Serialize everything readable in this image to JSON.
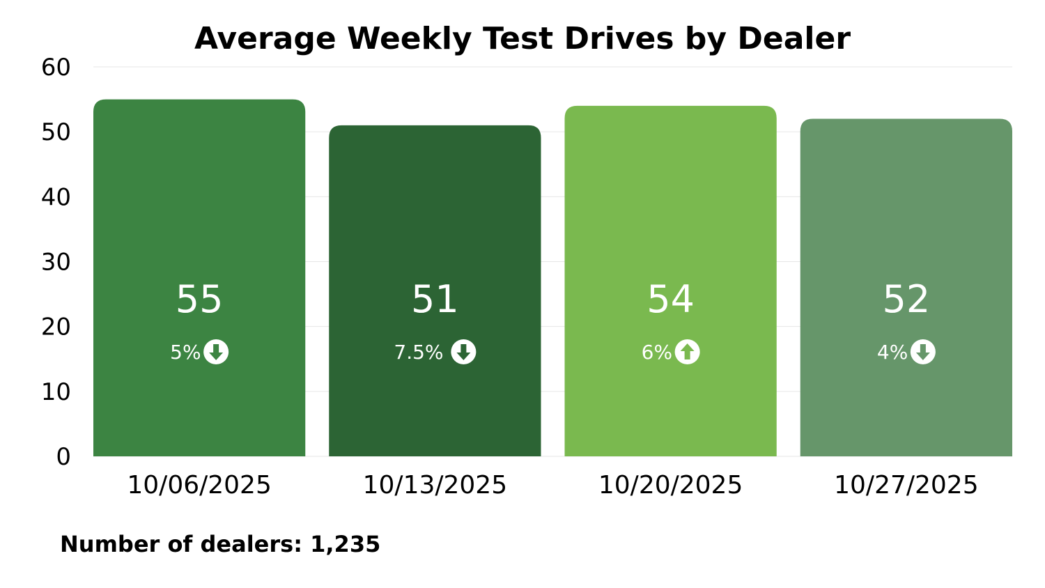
{
  "chart_data": {
    "type": "bar",
    "title": "Average Weekly Test Drives by Dealer",
    "xlabel": "",
    "ylabel": "",
    "ylim": [
      0,
      60
    ],
    "yticks": [
      0,
      10,
      20,
      30,
      40,
      50,
      60
    ],
    "categories": [
      "10/06/2025",
      "10/13/2025",
      "10/20/2025",
      "10/27/2025"
    ],
    "values": [
      55,
      51,
      54,
      52
    ],
    "value_labels": [
      "55",
      "51",
      "54",
      "52"
    ],
    "changes": [
      {
        "label": "5%",
        "direction": "down",
        "icon": "arrow-down-circle-icon"
      },
      {
        "label": "7.5%",
        "direction": "down",
        "icon": "arrow-down-circle-icon"
      },
      {
        "label": "6%",
        "direction": "up",
        "icon": "arrow-up-circle-icon"
      },
      {
        "label": "4%",
        "direction": "down",
        "icon": "arrow-down-circle-icon"
      }
    ],
    "colors": [
      "#3c8442",
      "#2c6434",
      "#7ab94f",
      "#66966a"
    ],
    "grid": true
  },
  "footer": {
    "text": "Number of dealers: 1,235"
  }
}
